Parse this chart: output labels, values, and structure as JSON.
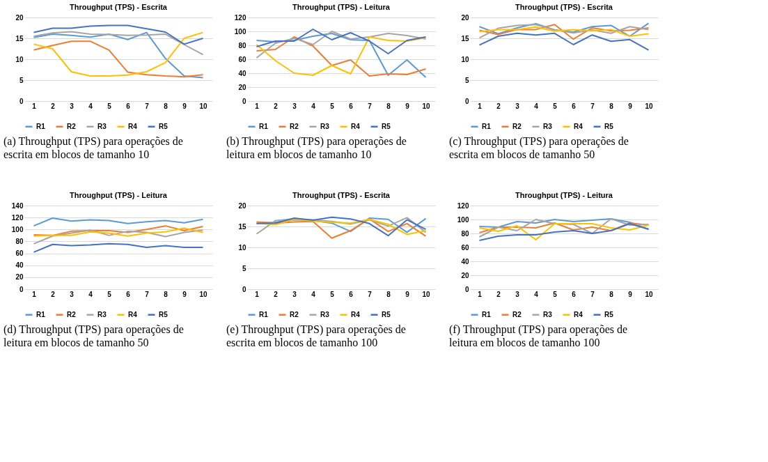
{
  "chart_data": [
    {
      "type": "line",
      "title": "Throughput (TPS) - Escrita",
      "categories": [
        "1",
        "2",
        "3",
        "4",
        "5",
        "6",
        "7",
        "8",
        "9",
        "10"
      ],
      "ylim": [
        0,
        20
      ],
      "yticks": [
        0,
        5,
        10,
        15,
        20
      ],
      "grid": "y",
      "legend": "bottom",
      "annotations": [
        "(a) Throughput (TPS) para operações de escrita em blocos de tamanho 10"
      ],
      "series": [
        {
          "name": "R1",
          "color": "#5b9bd5",
          "values": [
            15.2,
            16,
            15.7,
            15.3,
            16,
            14.7,
            16.4,
            10.2,
            6,
            5.6
          ]
        },
        {
          "name": "R2",
          "color": "#ed7d31",
          "values": [
            12.2,
            13.3,
            14.3,
            14.3,
            12.2,
            6.9,
            6.3,
            6,
            5.8,
            6.3
          ]
        },
        {
          "name": "R3",
          "color": "#a5a5a5",
          "values": [
            15.5,
            16.3,
            16.6,
            16,
            15.9,
            15.7,
            15.8,
            16,
            13.5,
            11.1
          ]
        },
        {
          "name": "R4",
          "color": "#ffc000",
          "values": [
            13.6,
            12.5,
            7,
            6,
            6,
            6.2,
            7,
            9.2,
            15,
            16.4
          ]
        },
        {
          "name": "R5",
          "color": "#4472c4",
          "values": [
            16.4,
            17.4,
            17.4,
            17.9,
            18.1,
            18.1,
            17.3,
            16.5,
            13.6,
            15
          ]
        }
      ]
    },
    {
      "type": "line",
      "title": "Throughput (TPS) - Leitura",
      "categories": [
        "1",
        "2",
        "3",
        "4",
        "5",
        "6",
        "7",
        "8",
        "9",
        "10"
      ],
      "ylim": [
        0,
        120
      ],
      "yticks": [
        0,
        20,
        40,
        60,
        80,
        100,
        120
      ],
      "grid": "y",
      "legend": "bottom",
      "annotations": [
        "(b) Throughput (TPS) para operações de leitura em blocos de tamanho 10"
      ],
      "series": [
        {
          "name": "R1",
          "color": "#5b9bd5",
          "values": [
            87,
            85,
            87,
            93,
            97,
            88,
            87,
            37,
            59,
            34
          ]
        },
        {
          "name": "R2",
          "color": "#ed7d31",
          "values": [
            72,
            74,
            92,
            79,
            51,
            59,
            36,
            39,
            38,
            46
          ]
        },
        {
          "name": "R3",
          "color": "#a5a5a5",
          "values": [
            62,
            83,
            90,
            81,
            100,
            89,
            92,
            97,
            94,
            89
          ]
        },
        {
          "name": "R4",
          "color": "#ffc000",
          "values": [
            81,
            58,
            40,
            37,
            51,
            39,
            92,
            87,
            86,
            91
          ]
        },
        {
          "name": "R5",
          "color": "#4472c4",
          "values": [
            78,
            86,
            86,
            103,
            88,
            98,
            86,
            68,
            87,
            92
          ]
        }
      ]
    },
    {
      "type": "line",
      "title": "Throughput (TPS) - Escrita",
      "categories": [
        "1",
        "2",
        "3",
        "4",
        "5",
        "6",
        "7",
        "8",
        "9",
        "10"
      ],
      "ylim": [
        0,
        20
      ],
      "yticks": [
        0,
        5,
        10,
        15,
        20
      ],
      "grid": "y",
      "legend": "bottom",
      "annotations": [
        "(c) Throughput (TPS) para operações de escrita em blocos de tamanho 50"
      ],
      "series": [
        {
          "name": "R1",
          "color": "#5b9bd5",
          "values": [
            17.8,
            16.1,
            17.5,
            18.5,
            17,
            16.5,
            17.8,
            18.1,
            15.5,
            18.6
          ]
        },
        {
          "name": "R2",
          "color": "#ed7d31",
          "values": [
            16.9,
            15.9,
            17.1,
            17.1,
            18.3,
            14.8,
            17.5,
            16.8,
            16.9,
            17.5
          ]
        },
        {
          "name": "R3",
          "color": "#a5a5a5",
          "values": [
            15.1,
            17.4,
            18.1,
            18.3,
            17,
            16.3,
            17,
            16.2,
            17.8,
            17.1
          ]
        },
        {
          "name": "R4",
          "color": "#ffc000",
          "values": [
            16.6,
            17.1,
            17.1,
            17.7,
            16.7,
            17.1,
            16.8,
            17.1,
            15.5,
            16.1
          ]
        },
        {
          "name": "R5",
          "color": "#4472c4",
          "values": [
            13.4,
            15.5,
            16.2,
            15.8,
            16.2,
            13.5,
            15.8,
            14.3,
            14.7,
            12.2
          ]
        }
      ]
    },
    {
      "type": "line",
      "title": "Throughput (TPS) - Leitura",
      "categories": [
        "1",
        "2",
        "3",
        "4",
        "5",
        "6",
        "7",
        "8",
        "9",
        "10"
      ],
      "ylim": [
        0,
        140
      ],
      "yticks": [
        0,
        20,
        40,
        60,
        80,
        100,
        120,
        140
      ],
      "grid": "y",
      "legend": "bottom",
      "annotations": [
        "(d) Throughput (TPS) para operações de leitura em blocos de tamanho 50"
      ],
      "series": [
        {
          "name": "R1",
          "color": "#5b9bd5",
          "values": [
            106,
            119,
            114,
            116,
            115,
            110,
            113,
            115,
            111,
            117
          ]
        },
        {
          "name": "R2",
          "color": "#ed7d31",
          "values": [
            91,
            90,
            97,
            98,
            98,
            95,
            100,
            106,
            98,
            105
          ]
        },
        {
          "name": "R3",
          "color": "#a5a5a5",
          "values": [
            76,
            89,
            94,
            99,
            90,
            97,
            95,
            88,
            95,
            99
          ]
        },
        {
          "name": "R4",
          "color": "#ffc000",
          "values": [
            89,
            90,
            90,
            96,
            94,
            89,
            94,
            96,
            102,
            95
          ]
        },
        {
          "name": "R5",
          "color": "#4472c4",
          "values": [
            62,
            75,
            73,
            74,
            76,
            75,
            70,
            73,
            70,
            70
          ]
        }
      ]
    },
    {
      "type": "line",
      "title": "Throughput (TPS) - Escrita",
      "categories": [
        "1",
        "2",
        "3",
        "4",
        "5",
        "6",
        "7",
        "8",
        "9",
        "10"
      ],
      "ylim": [
        0,
        20
      ],
      "yticks": [
        0,
        5,
        10,
        15,
        20
      ],
      "grid": "y",
      "legend": "bottom",
      "annotations": [
        "(e) Throughput (TPS) para operações de escrita em blocos de tamanho 100"
      ],
      "series": [
        {
          "name": "R1",
          "color": "#5b9bd5",
          "values": [
            15.8,
            16,
            16.6,
            16.4,
            15.8,
            13.8,
            17,
            16.7,
            13.6,
            16.9
          ]
        },
        {
          "name": "R2",
          "color": "#ed7d31",
          "values": [
            16.1,
            15.8,
            16.1,
            16.2,
            12.2,
            14,
            16.8,
            13.8,
            15.7,
            12.7
          ]
        },
        {
          "name": "R3",
          "color": "#a5a5a5",
          "values": [
            13.2,
            16.4,
            16.8,
            16.6,
            16.2,
            15.6,
            16.6,
            15.1,
            17.1,
            13.6
          ]
        },
        {
          "name": "R4",
          "color": "#ffc000",
          "values": [
            15.8,
            15.4,
            16.7,
            16.3,
            16,
            15.8,
            16.7,
            15.5,
            13.1,
            14
          ]
        },
        {
          "name": "R5",
          "color": "#4472c4",
          "values": [
            15.7,
            15.8,
            17,
            16.5,
            17.2,
            16.8,
            15.7,
            12.8,
            16.6,
            14.3
          ]
        }
      ]
    },
    {
      "type": "line",
      "title": "Throughput (TPS) - Leitura",
      "categories": [
        "1",
        "2",
        "3",
        "4",
        "5",
        "6",
        "7",
        "8",
        "9",
        "10"
      ],
      "ylim": [
        0,
        120
      ],
      "yticks": [
        0,
        20,
        40,
        60,
        80,
        100,
        120
      ],
      "grid": "y",
      "legend": "bottom",
      "annotations": [
        "(f) Throughput (TPS) para operações de leitura em blocos de tamanho 100"
      ],
      "series": [
        {
          "name": "R1",
          "color": "#5b9bd5",
          "values": [
            90,
            89,
            97,
            95,
            100,
            97,
            99,
            101,
            96,
            86
          ]
        },
        {
          "name": "R2",
          "color": "#ed7d31",
          "values": [
            81,
            89,
            89,
            88,
            95,
            85,
            89,
            84,
            95,
            92
          ]
        },
        {
          "name": "R3",
          "color": "#a5a5a5",
          "values": [
            75,
            89,
            84,
            100,
            94,
            93,
            80,
            101,
            92,
            93
          ]
        },
        {
          "name": "R4",
          "color": "#ffc000",
          "values": [
            88,
            83,
            91,
            71,
            94,
            94,
            94,
            88,
            85,
            92
          ]
        },
        {
          "name": "R5",
          "color": "#4472c4",
          "values": [
            70,
            76,
            78,
            78,
            82,
            84,
            80,
            84,
            94,
            86
          ]
        }
      ]
    }
  ]
}
